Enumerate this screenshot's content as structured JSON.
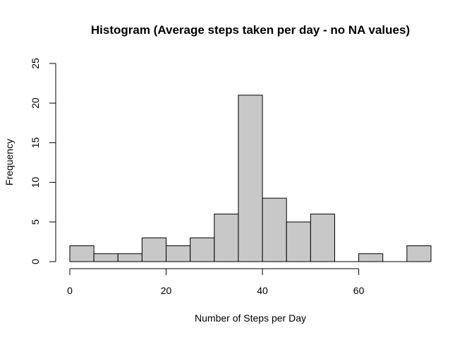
{
  "chart_data": {
    "type": "bar",
    "title": "Histogram (Average steps taken per day - no NA values)",
    "xlabel": "Number of Steps per Day",
    "ylabel": "Frequency",
    "bin_edges": [
      0,
      5,
      10,
      15,
      20,
      25,
      30,
      35,
      40,
      45,
      50,
      55,
      60,
      65,
      70,
      75
    ],
    "values": [
      2,
      1,
      1,
      3,
      2,
      3,
      6,
      21,
      8,
      5,
      6,
      0,
      1,
      0,
      2
    ],
    "xlim": [
      0,
      75
    ],
    "ylim": [
      0,
      25
    ],
    "x_ticks": [
      0,
      20,
      40,
      60
    ],
    "y_ticks": [
      0,
      5,
      10,
      15,
      20,
      25
    ],
    "grid": false,
    "legend": "none",
    "colors": {
      "bar_fill": "#c8c8c8",
      "bar_stroke": "#000000",
      "axis": "#000000",
      "background": "#ffffff"
    }
  }
}
